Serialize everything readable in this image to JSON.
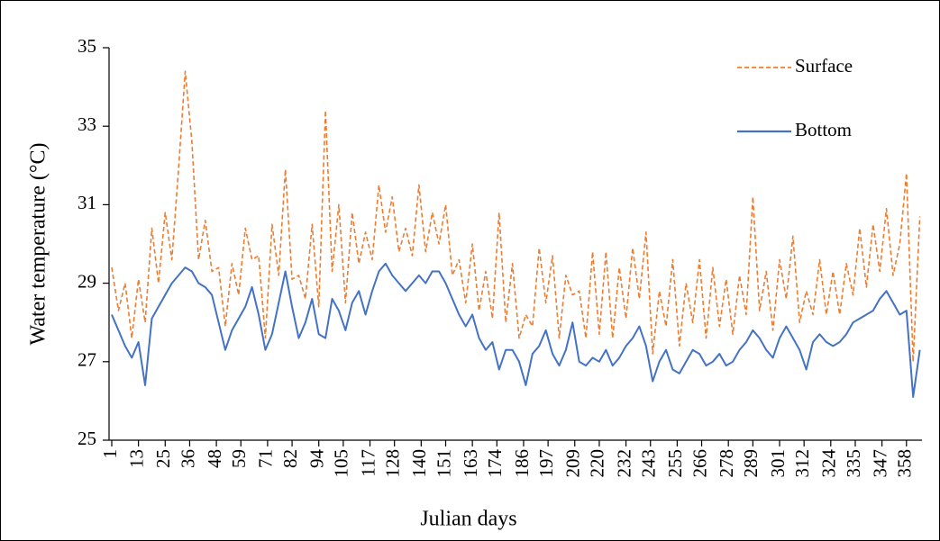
{
  "chart_data": {
    "type": "line",
    "xlabel": "Julian days",
    "ylabel": "Water temperature (°C)",
    "xlim": [
      1,
      365
    ],
    "xticks": [
      1,
      13,
      25,
      36,
      48,
      59,
      71,
      82,
      94,
      105,
      117,
      128,
      140,
      151,
      163,
      174,
      186,
      197,
      209,
      220,
      232,
      243,
      255,
      266,
      278,
      289,
      301,
      312,
      324,
      335,
      347,
      358
    ],
    "ylim": [
      25,
      35
    ],
    "yticks": [
      25,
      27,
      29,
      31,
      33,
      35
    ],
    "grid": false,
    "legend": "upper right",
    "x": [
      1,
      4,
      7,
      10,
      13,
      16,
      19,
      22,
      25,
      28,
      31,
      34,
      37,
      40,
      43,
      46,
      49,
      52,
      55,
      58,
      61,
      64,
      67,
      70,
      73,
      76,
      79,
      82,
      85,
      88,
      91,
      94,
      97,
      100,
      103,
      106,
      109,
      112,
      115,
      118,
      121,
      124,
      127,
      130,
      133,
      136,
      139,
      142,
      145,
      148,
      151,
      154,
      157,
      160,
      163,
      166,
      169,
      172,
      175,
      178,
      181,
      184,
      187,
      190,
      193,
      196,
      199,
      202,
      205,
      208,
      211,
      214,
      217,
      220,
      223,
      226,
      229,
      232,
      235,
      238,
      241,
      244,
      247,
      250,
      253,
      256,
      259,
      262,
      265,
      268,
      271,
      274,
      277,
      280,
      283,
      286,
      289,
      292,
      295,
      298,
      301,
      304,
      307,
      310,
      313,
      316,
      319,
      322,
      325,
      328,
      331,
      334,
      337,
      340,
      343,
      346,
      349,
      352,
      355,
      358,
      361,
      364
    ],
    "series": [
      {
        "name": "Surface",
        "color": "#ED7D31",
        "dashed": true,
        "values": [
          29.4,
          28.3,
          29.0,
          27.6,
          29.1,
          28.0,
          30.4,
          29.0,
          30.8,
          29.6,
          31.9,
          34.4,
          32.6,
          29.6,
          30.6,
          29.3,
          29.4,
          27.9,
          29.5,
          28.7,
          30.4,
          29.6,
          29.7,
          27.6,
          30.5,
          29.2,
          31.9,
          29.1,
          29.2,
          28.6,
          30.5,
          28.4,
          33.4,
          29.3,
          31.0,
          28.5,
          30.8,
          29.5,
          30.3,
          29.6,
          31.5,
          30.3,
          31.2,
          29.8,
          30.4,
          29.7,
          31.5,
          29.8,
          30.8,
          30.0,
          31.0,
          29.2,
          29.6,
          28.5,
          30.0,
          28.3,
          29.3,
          28.1,
          30.8,
          28.0,
          29.5,
          27.6,
          28.2,
          27.9,
          29.9,
          28.5,
          29.7,
          27.6,
          29.2,
          28.7,
          28.8,
          27.6,
          29.8,
          27.7,
          29.8,
          27.6,
          29.4,
          28.1,
          29.9,
          28.6,
          30.3,
          27.2,
          28.8,
          27.9,
          29.6,
          27.4,
          29.0,
          28.0,
          29.6,
          27.6,
          29.4,
          27.9,
          29.1,
          27.7,
          29.2,
          28.2,
          31.2,
          28.3,
          29.3,
          27.8,
          29.6,
          28.6,
          30.2,
          28.0,
          28.8,
          28.2,
          29.6,
          28.2,
          29.3,
          28.2,
          29.5,
          28.7,
          30.4,
          28.9,
          30.5,
          29.3,
          30.9,
          29.2,
          30.0,
          31.8,
          27.0,
          30.7
        ]
      },
      {
        "name": "Bottom",
        "color": "#4472C4",
        "dashed": false,
        "values": [
          28.2,
          27.8,
          27.4,
          27.1,
          27.5,
          26.4,
          28.1,
          28.4,
          28.7,
          29.0,
          29.2,
          29.4,
          29.3,
          29.0,
          28.9,
          28.7,
          28.0,
          27.3,
          27.8,
          28.1,
          28.4,
          28.9,
          28.2,
          27.3,
          27.7,
          28.5,
          29.3,
          28.4,
          27.6,
          28.0,
          28.6,
          27.7,
          27.6,
          28.6,
          28.3,
          27.8,
          28.5,
          28.8,
          28.2,
          28.8,
          29.3,
          29.5,
          29.2,
          29.0,
          28.8,
          29.0,
          29.2,
          29.0,
          29.3,
          29.3,
          29.0,
          28.6,
          28.2,
          27.9,
          28.2,
          27.6,
          27.3,
          27.5,
          26.8,
          27.3,
          27.3,
          27.0,
          26.4,
          27.2,
          27.4,
          27.8,
          27.2,
          26.9,
          27.3,
          28.0,
          27.0,
          26.9,
          27.1,
          27.0,
          27.3,
          26.9,
          27.1,
          27.4,
          27.6,
          27.9,
          27.4,
          26.5,
          27.0,
          27.3,
          26.8,
          26.7,
          27.0,
          27.3,
          27.2,
          26.9,
          27.0,
          27.2,
          26.9,
          27.0,
          27.3,
          27.5,
          27.8,
          27.6,
          27.3,
          27.1,
          27.6,
          27.9,
          27.6,
          27.3,
          26.8,
          27.5,
          27.7,
          27.5,
          27.4,
          27.5,
          27.7,
          28.0,
          28.1,
          28.2,
          28.3,
          28.6,
          28.8,
          28.5,
          28.2,
          28.3,
          26.1,
          27.3
        ]
      }
    ]
  }
}
